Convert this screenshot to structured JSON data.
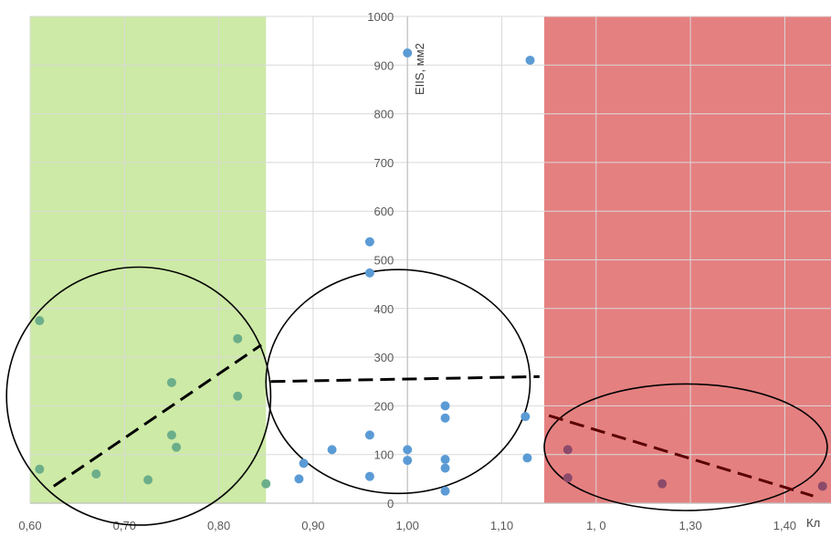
{
  "chart_data": {
    "type": "scatter",
    "title": "",
    "xlabel": "Кл",
    "ylabel": "EIIS, мм2",
    "xlim": [
      0.6,
      1.45
    ],
    "ylim": [
      0,
      1000
    ],
    "x_tick_labels": [
      "0,60",
      "0,70",
      "0,80",
      "0,90",
      "1,00",
      "1,10",
      "1,  0",
      "1,30",
      "1,40"
    ],
    "x_tick_values": [
      0.6,
      0.7,
      0.8,
      0.9,
      1.0,
      1.1,
      1.2,
      1.3,
      1.4
    ],
    "y_tick_labels": [
      "0",
      "100",
      "200",
      "300",
      "400",
      "500",
      "600",
      "700",
      "800",
      "900",
      "1000"
    ],
    "y_tick_values": [
      0,
      100,
      200,
      300,
      400,
      500,
      600,
      700,
      800,
      900,
      1000
    ],
    "grid": true,
    "legend": "none",
    "regions": [
      {
        "from": 0.6,
        "to": 0.85,
        "color": "#cdeaa6"
      },
      {
        "from": 1.145,
        "to": 1.45,
        "color": "#e58080"
      }
    ],
    "points": [
      {
        "x": 0.61,
        "y": 375
      },
      {
        "x": 0.61,
        "y": 70
      },
      {
        "x": 0.67,
        "y": 60
      },
      {
        "x": 0.725,
        "y": 48
      },
      {
        "x": 0.75,
        "y": 248
      },
      {
        "x": 0.75,
        "y": 140
      },
      {
        "x": 0.755,
        "y": 115
      },
      {
        "x": 0.82,
        "y": 338
      },
      {
        "x": 0.82,
        "y": 220
      },
      {
        "x": 0.85,
        "y": 40
      },
      {
        "x": 0.885,
        "y": 50
      },
      {
        "x": 0.89,
        "y": 82
      },
      {
        "x": 0.92,
        "y": 110
      },
      {
        "x": 0.96,
        "y": 537
      },
      {
        "x": 0.96,
        "y": 473
      },
      {
        "x": 0.96,
        "y": 140
      },
      {
        "x": 0.96,
        "y": 55
      },
      {
        "x": 1.0,
        "y": 925
      },
      {
        "x": 1.0,
        "y": 110
      },
      {
        "x": 1.0,
        "y": 88
      },
      {
        "x": 1.04,
        "y": 200
      },
      {
        "x": 1.04,
        "y": 175
      },
      {
        "x": 1.04,
        "y": 90
      },
      {
        "x": 1.04,
        "y": 72
      },
      {
        "x": 1.04,
        "y": 25
      },
      {
        "x": 1.125,
        "y": 178
      },
      {
        "x": 1.127,
        "y": 93
      },
      {
        "x": 1.13,
        "y": 910
      },
      {
        "x": 1.17,
        "y": 110
      },
      {
        "x": 1.17,
        "y": 52
      },
      {
        "x": 1.27,
        "y": 40
      },
      {
        "x": 1.44,
        "y": 35
      }
    ],
    "trend_lines": [
      {
        "x1": 0.625,
        "y1": 35,
        "x2": 0.845,
        "y2": 325
      },
      {
        "x1": 0.855,
        "y1": 250,
        "x2": 1.14,
        "y2": 260
      },
      {
        "x1": 1.15,
        "y1": 180,
        "x2": 1.43,
        "y2": 15
      }
    ],
    "ellipses": [
      {
        "cx": 0.715,
        "cy": 220,
        "rx": 0.14,
        "ry": 265
      },
      {
        "cx": 0.99,
        "cy": 250,
        "rx": 0.14,
        "ry": 230
      },
      {
        "cx": 1.295,
        "cy": 115,
        "rx": 0.15,
        "ry": 130
      }
    ],
    "colors": {
      "point": "#5b9bd5",
      "point_on_green": "#6cae8a",
      "point_on_red": "#8c4a6a",
      "grid": "#d9d9d9",
      "axis": "#bfbfbf",
      "ellipse": "#000000",
      "trend": "#000000",
      "trend_on_red": "#5a0000"
    }
  }
}
